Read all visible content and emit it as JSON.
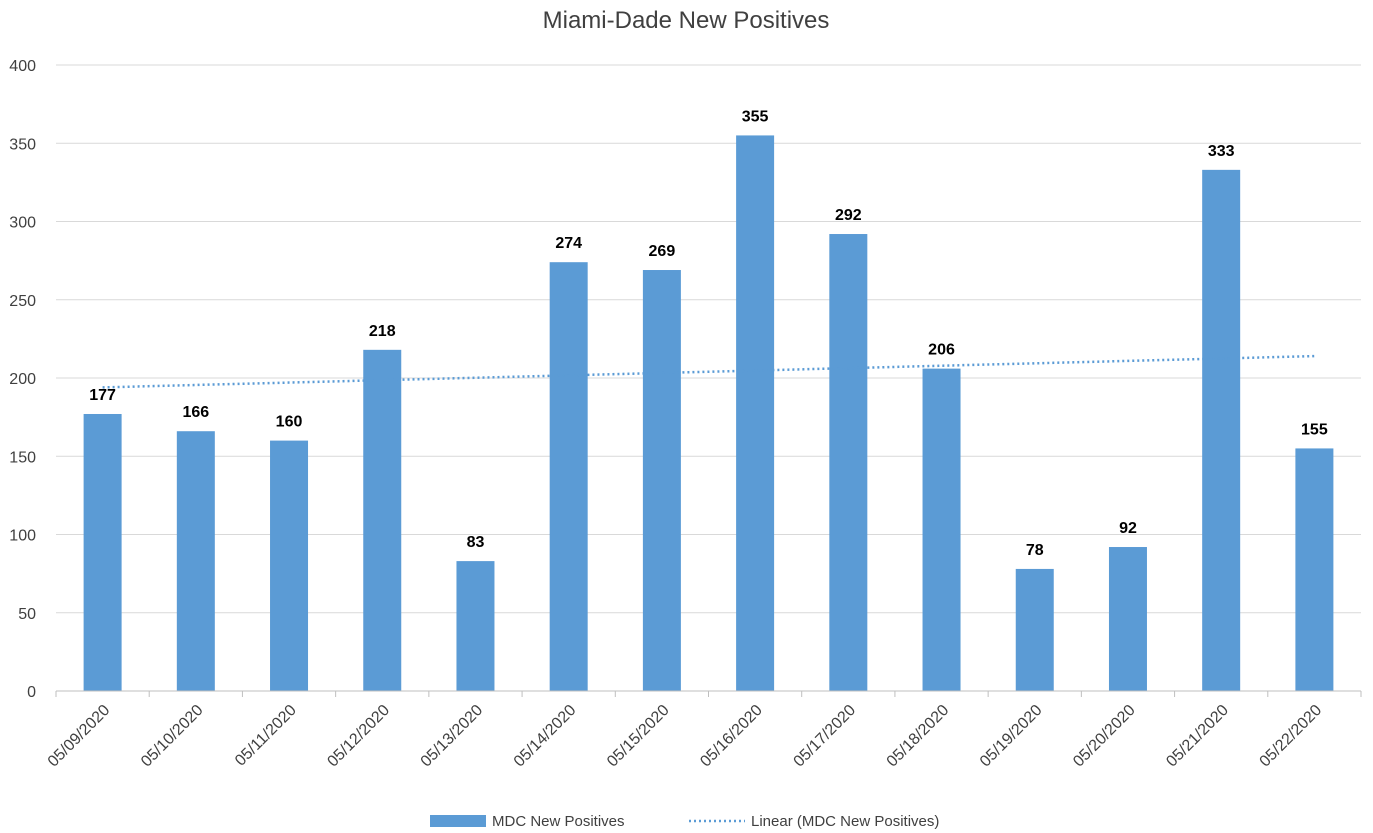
{
  "chart_data": {
    "type": "bar",
    "title": "Miami-Dade New Positives",
    "xlabel": "",
    "ylabel": "",
    "categories": [
      "05/09/2020",
      "05/10/2020",
      "05/11/2020",
      "05/12/2020",
      "05/13/2020",
      "05/14/2020",
      "05/15/2020",
      "05/16/2020",
      "05/17/2020",
      "05/18/2020",
      "05/19/2020",
      "05/20/2020",
      "05/21/2020",
      "05/22/2020"
    ],
    "series": [
      {
        "name": "MDC New Positives",
        "values": [
          177,
          166,
          160,
          218,
          83,
          274,
          269,
          355,
          292,
          206,
          78,
          92,
          333,
          155
        ],
        "color": "#5b9bd5"
      }
    ],
    "trendline": {
      "name": "Linear (MDC New Positives)",
      "type": "linear",
      "color": "#5b9bd5",
      "style": "dotted",
      "start": 194,
      "end": 214
    },
    "ylim": [
      0,
      400
    ],
    "yticks": [
      0,
      50,
      100,
      150,
      200,
      250,
      300,
      350,
      400
    ],
    "grid": true,
    "data_labels": true,
    "legend": "bottom",
    "colors": {
      "bar": "#5b9bd5",
      "grid": "#d9d9d9",
      "axis": "#bfbfbf",
      "text": "#404040"
    }
  }
}
